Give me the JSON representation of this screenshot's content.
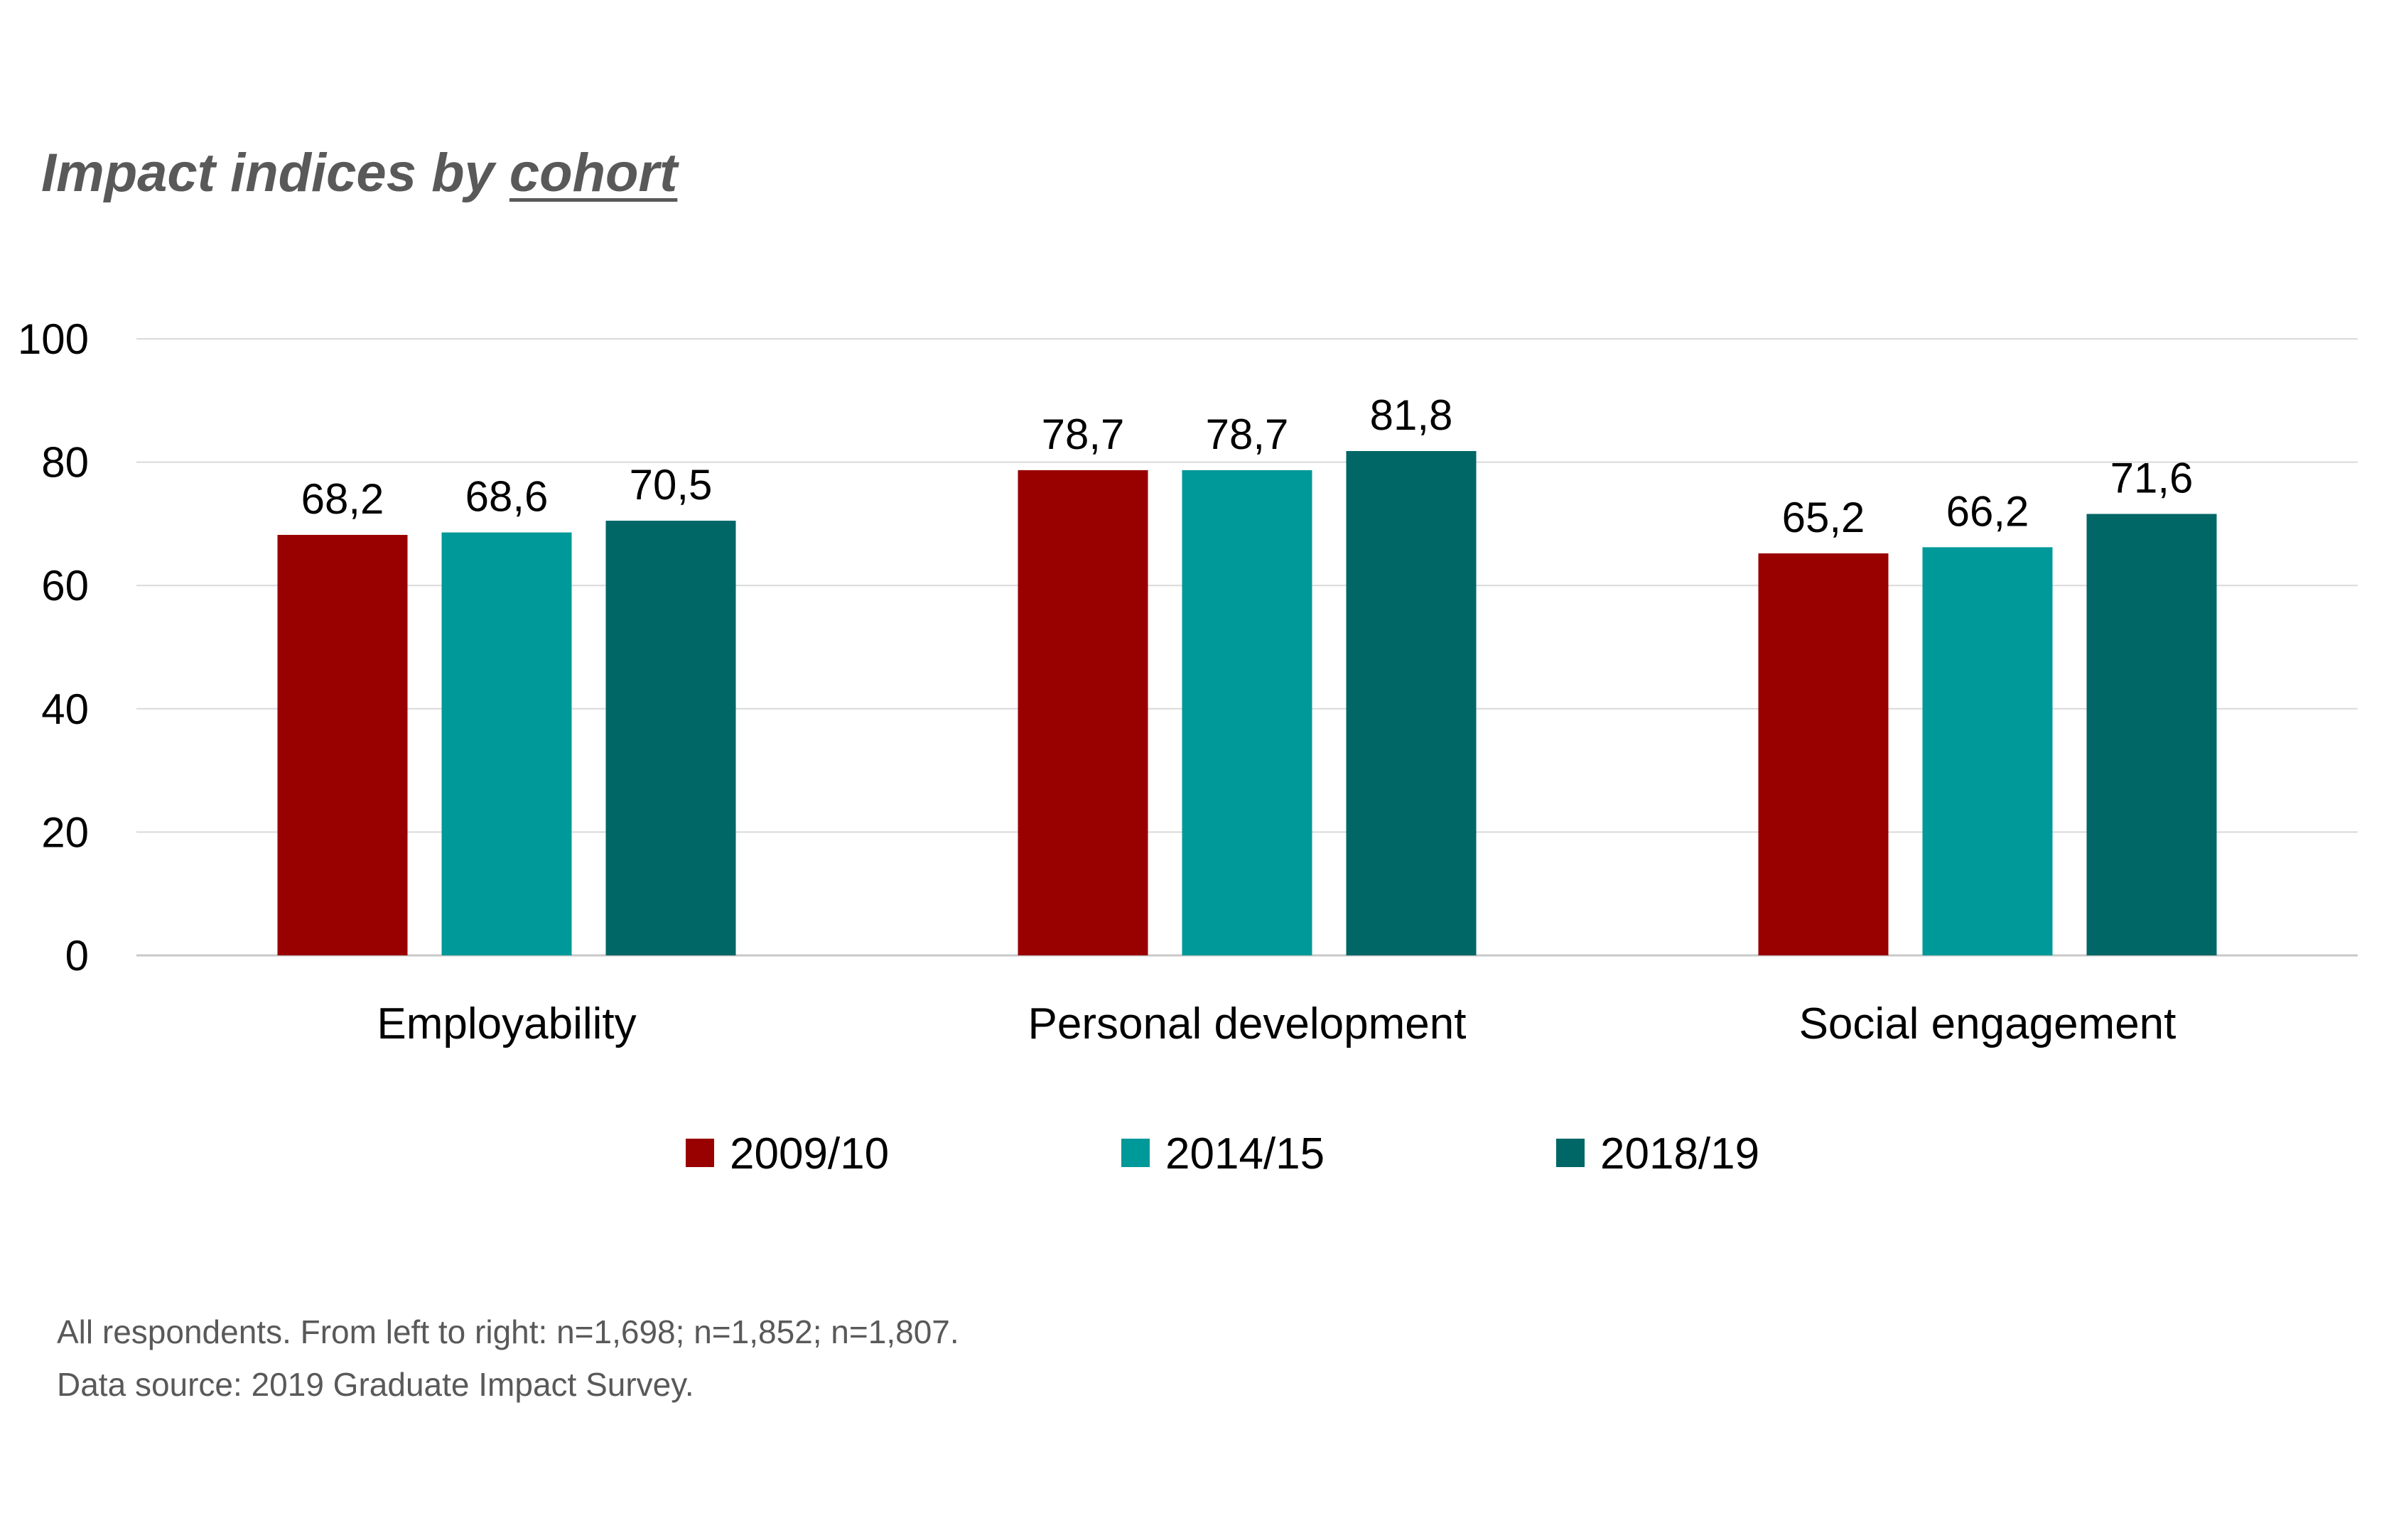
{
  "title": {
    "main": "Impact indices by ",
    "underlined": "cohort"
  },
  "notes": {
    "line1": "All respondents. From left to right: n=1,698; n=1,852; n=1,807.",
    "line2": "Data source: 2019 Graduate Impact Survey."
  },
  "chart_data": {
    "type": "bar",
    "title": "Impact indices by cohort",
    "categories": [
      "Employability",
      "Personal development",
      "Social engagement"
    ],
    "series": [
      {
        "name": "2009/10",
        "color": "#990000",
        "values": [
          68.2,
          78.7,
          65.2
        ],
        "labels": [
          "68,2",
          "78,7",
          "65,2"
        ]
      },
      {
        "name": "2014/15",
        "color": "#009999",
        "values": [
          68.6,
          78.7,
          66.2
        ],
        "labels": [
          "68,6",
          "78,7",
          "66,2"
        ]
      },
      {
        "name": "2018/19",
        "color": "#006666",
        "values": [
          70.5,
          81.8,
          71.6
        ],
        "labels": [
          "70,5",
          "81,8",
          "71,6"
        ]
      }
    ],
    "yticks": [
      "0",
      "20",
      "40",
      "60",
      "80",
      "100"
    ],
    "ylim": [
      0,
      100
    ],
    "xlabel": "",
    "ylabel": "",
    "grid": true,
    "legend_position": "bottom"
  }
}
